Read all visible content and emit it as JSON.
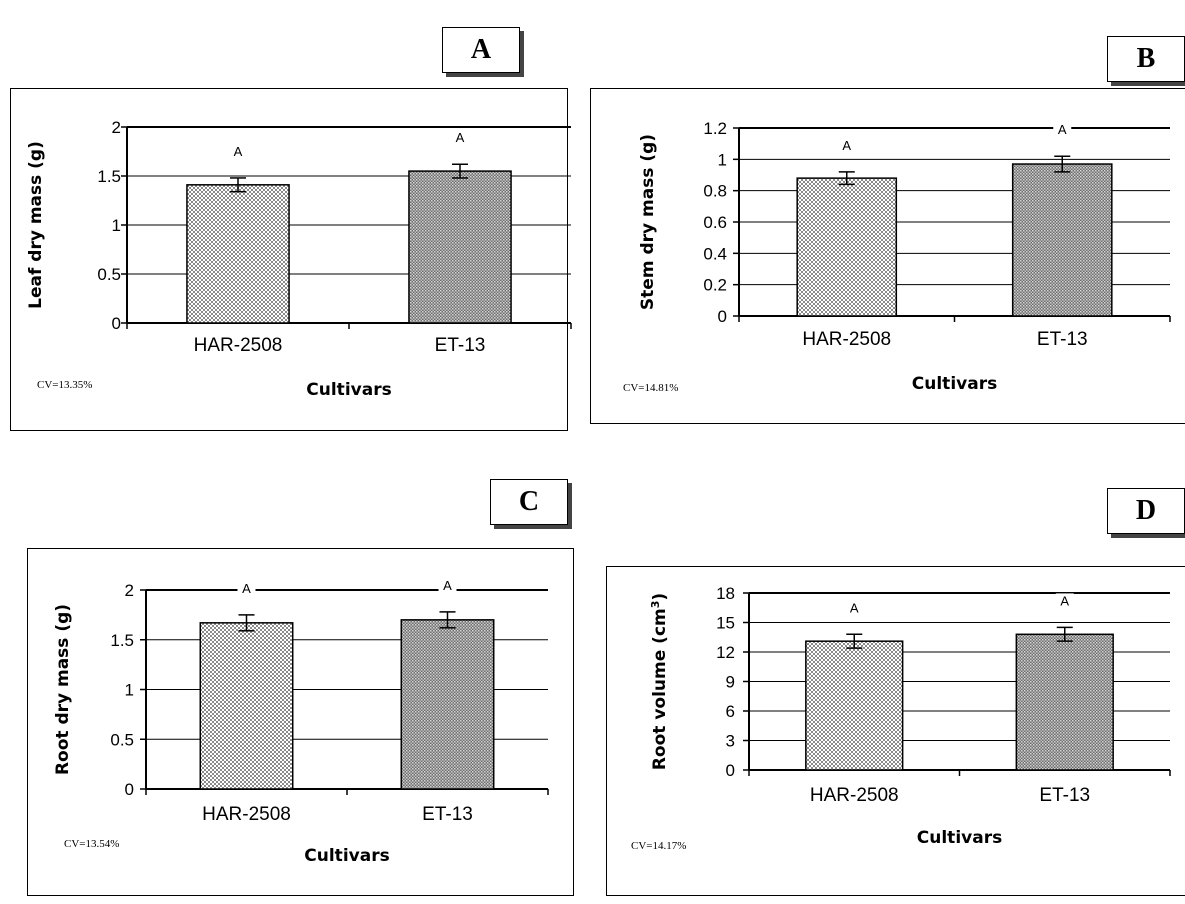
{
  "panels": [
    {
      "letter": "A",
      "cv": "CV=13.35%",
      "chart_data": {
        "type": "bar",
        "categories": [
          "HAR-2508",
          "ET-13"
        ],
        "values": [
          1.41,
          1.55
        ],
        "errors": [
          0.07,
          0.07
        ],
        "significance": [
          "A",
          "A"
        ],
        "xlabel": "Cultivars",
        "ylabel": "Leaf dry mass (g)",
        "ylim": [
          0,
          2
        ],
        "yticks": [
          "0",
          "0.5",
          "1",
          "1.5",
          "2"
        ],
        "grid": true,
        "bar_fills": [
          "#d2d2d2",
          "#a6a6a6"
        ]
      }
    },
    {
      "letter": "B",
      "cv": "CV=14.81%",
      "chart_data": {
        "type": "bar",
        "categories": [
          "HAR-2508",
          "ET-13"
        ],
        "values": [
          0.88,
          0.97
        ],
        "errors": [
          0.04,
          0.05
        ],
        "significance": [
          "A",
          "A"
        ],
        "xlabel": "Cultivars",
        "ylabel": "Stem dry mass (g)",
        "ylim": [
          0,
          1.2
        ],
        "yticks": [
          "0",
          "0.2",
          "0.4",
          "0.6",
          "0.8",
          "1",
          "1.2"
        ],
        "grid": true,
        "bar_fills": [
          "#d2d2d2",
          "#a6a6a6"
        ]
      }
    },
    {
      "letter": "C",
      "cv": "CV=13.54%",
      "chart_data": {
        "type": "bar",
        "categories": [
          "HAR-2508",
          "ET-13"
        ],
        "values": [
          1.67,
          1.7
        ],
        "errors": [
          0.08,
          0.08
        ],
        "significance": [
          "A",
          "A"
        ],
        "xlabel": "Cultivars",
        "ylabel": "Root dry mass (g)",
        "ylim": [
          0,
          2
        ],
        "yticks": [
          "0",
          "0.5",
          "1",
          "1.5",
          "2"
        ],
        "grid": true,
        "bar_fills": [
          "#d2d2d2",
          "#a6a6a6"
        ]
      }
    },
    {
      "letter": "D",
      "cv": "CV=14.17%",
      "chart_data": {
        "type": "bar",
        "categories": [
          "HAR-2508",
          "ET-13"
        ],
        "values": [
          13.1,
          13.8
        ],
        "errors": [
          0.7,
          0.7
        ],
        "significance": [
          "A",
          "A"
        ],
        "xlabel": "Cultivars",
        "ylabel": "Root volume (cm3)",
        "ylim": [
          0,
          18
        ],
        "yticks": [
          "0",
          "3",
          "6",
          "9",
          "12",
          "15",
          "18"
        ],
        "grid": true,
        "bar_fills": [
          "#d2d2d2",
          "#a6a6a6"
        ]
      }
    }
  ]
}
